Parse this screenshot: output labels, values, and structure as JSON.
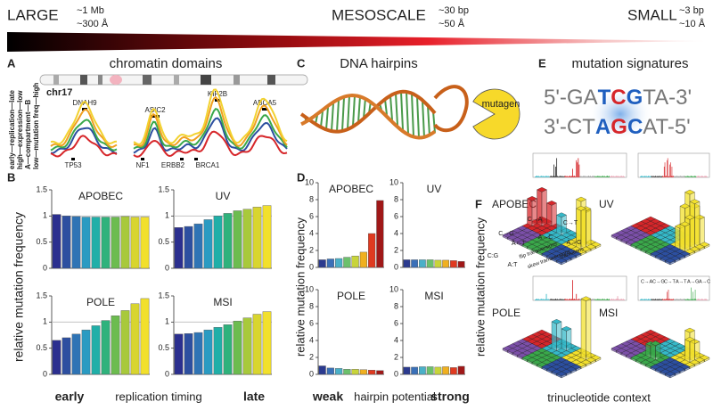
{
  "header": {
    "large": "LARGE",
    "large_size": [
      "~1 Mb",
      "~300 Å"
    ],
    "mesoscale": "MESOSCALE",
    "meso_size": [
      "~30 bp",
      "~50 Å"
    ],
    "small": "SMALL",
    "small_size": [
      "~3 bp",
      "~10 Å"
    ]
  },
  "panel_a": {
    "label": "A",
    "title": "chromatin domains",
    "chromosome": "chr17",
    "genes_top": [
      "DNAH9",
      "ASIC2",
      "KIF2B",
      "ABCA5"
    ],
    "genes_bottom": [
      "TP53",
      "NF1",
      "ERBB2",
      "BRCA1"
    ],
    "legend": [
      "early—replication—late",
      "high—expression—low",
      "A—compartment—B",
      "low—mutation freq—high"
    ]
  },
  "panel_c": {
    "label": "C",
    "title": "DNA hairpins",
    "mutagen": "mutagen"
  },
  "panel_e": {
    "label": "E",
    "title": "mutation signatures",
    "top_strand": [
      "5'-GA",
      "T",
      "C",
      "G",
      "TA-3'"
    ],
    "bottom_strand": [
      "3'-CT",
      "A",
      "G",
      "C",
      "AT-5'"
    ]
  },
  "panel_b": {
    "label": "B",
    "y_label": "relative mutation frequency",
    "x_start": "early",
    "x_label": "replication timing",
    "x_end": "late"
  },
  "panel_d": {
    "label": "D",
    "x_start": "weak",
    "x_label": "hairpin potential",
    "x_end": "strong"
  },
  "panel_f": {
    "label": "F",
    "titles": [
      "APOBEC",
      "UV",
      "POLE",
      "MSI"
    ],
    "y_label": "relative mutation frequency",
    "x_label": "trinucleotide context",
    "apobec_labels": [
      "C→G",
      "C→A",
      "C→T",
      "A→T",
      "A→C",
      "A→G",
      "C:G",
      "A:T",
      "flip transversions",
      "skew transversions",
      "transitions"
    ],
    "spectrum_legend": [
      "C→A",
      "C→G",
      "C→T",
      "A→T",
      "A→G",
      "A→C"
    ]
  },
  "chart_data": [
    {
      "type": "bar",
      "title": "APOBEC",
      "values": [
        1.03,
        1.0,
        0.99,
        0.98,
        0.98,
        0.98,
        0.98,
        0.99,
        0.98,
        0.98
      ],
      "colors": [
        "#2b2f8f",
        "#2d4fa0",
        "#2f74b5",
        "#2a9bc2",
        "#20afa8",
        "#2fb27c",
        "#6cbc4f",
        "#a8c93b",
        "#d8d52f",
        "#f2e02c"
      ],
      "ylim": [
        0,
        1.5
      ],
      "yticks": [
        0,
        0.5,
        1,
        1.5
      ],
      "reference_line": 1
    },
    {
      "type": "bar",
      "title": "UV",
      "values": [
        0.78,
        0.8,
        0.85,
        0.93,
        1.0,
        1.05,
        1.1,
        1.13,
        1.17,
        1.2
      ],
      "colors": [
        "#2b2f8f",
        "#2d4fa0",
        "#2f74b5",
        "#2a9bc2",
        "#20afa8",
        "#2fb27c",
        "#6cbc4f",
        "#a8c93b",
        "#d8d52f",
        "#f2e02c"
      ],
      "ylim": [
        0,
        1.5
      ],
      "yticks": [
        0,
        0.5,
        1,
        1.5
      ],
      "reference_line": 1
    },
    {
      "type": "bar",
      "title": "POLE",
      "values": [
        0.65,
        0.7,
        0.77,
        0.85,
        0.93,
        1.03,
        1.12,
        1.22,
        1.35,
        1.45
      ],
      "colors": [
        "#2b2f8f",
        "#2d4fa0",
        "#2f74b5",
        "#2a9bc2",
        "#20afa8",
        "#2fb27c",
        "#6cbc4f",
        "#a8c93b",
        "#d8d52f",
        "#f2e02c"
      ],
      "ylim": [
        0,
        1.5
      ],
      "yticks": [
        0,
        0.5,
        1,
        1.5
      ],
      "reference_line": 1
    },
    {
      "type": "bar",
      "title": "MSI",
      "values": [
        0.77,
        0.78,
        0.8,
        0.85,
        0.9,
        0.95,
        1.02,
        1.08,
        1.15,
        1.2
      ],
      "colors": [
        "#2b2f8f",
        "#2d4fa0",
        "#2f74b5",
        "#2a9bc2",
        "#20afa8",
        "#2fb27c",
        "#6cbc4f",
        "#a8c93b",
        "#d8d52f",
        "#f2e02c"
      ],
      "ylim": [
        0,
        1.5
      ],
      "yticks": [
        0,
        0.5,
        1,
        1.5
      ],
      "reference_line": 1
    },
    {
      "type": "bar",
      "title": "APOBEC",
      "values": [
        0.9,
        1.0,
        1.05,
        1.2,
        1.35,
        1.8,
        4.0,
        7.9
      ],
      "colors": [
        "#2b3a8f",
        "#3a70b8",
        "#4ab0c8",
        "#6cc06c",
        "#c8d43a",
        "#f0b020",
        "#e03a20",
        "#a01818"
      ],
      "ylim": [
        0,
        10
      ],
      "yticks": [
        0,
        2,
        4,
        6,
        8,
        10
      ]
    },
    {
      "type": "bar",
      "title": "UV",
      "values": [
        0.9,
        0.9,
        0.9,
        0.9,
        0.85,
        0.85,
        0.8,
        0.7
      ],
      "colors": [
        "#2b3a8f",
        "#3a70b8",
        "#4ab0c8",
        "#6cc06c",
        "#c8d43a",
        "#f0b020",
        "#e03a20",
        "#a01818"
      ],
      "ylim": [
        0,
        10
      ],
      "yticks": [
        0,
        2,
        4,
        6,
        8,
        10
      ]
    },
    {
      "type": "bar",
      "title": "POLE",
      "values": [
        1.0,
        0.75,
        0.7,
        0.6,
        0.6,
        0.55,
        0.5,
        0.45
      ],
      "colors": [
        "#2b3a8f",
        "#3a70b8",
        "#4ab0c8",
        "#6cc06c",
        "#c8d43a",
        "#f0b020",
        "#e03a20",
        "#a01818"
      ],
      "ylim": [
        0,
        10
      ],
      "yticks": [
        0,
        2,
        4,
        6,
        8,
        10
      ]
    },
    {
      "type": "bar",
      "title": "MSI",
      "values": [
        0.85,
        0.85,
        0.9,
        0.9,
        0.85,
        0.9,
        0.8,
        0.95
      ],
      "colors": [
        "#2b3a8f",
        "#3a70b8",
        "#4ab0c8",
        "#6cc06c",
        "#c8d43a",
        "#f0b020",
        "#e03a20",
        "#a01818"
      ],
      "ylim": [
        0,
        10
      ],
      "yticks": [
        0,
        2,
        4,
        6,
        8,
        10
      ]
    }
  ]
}
